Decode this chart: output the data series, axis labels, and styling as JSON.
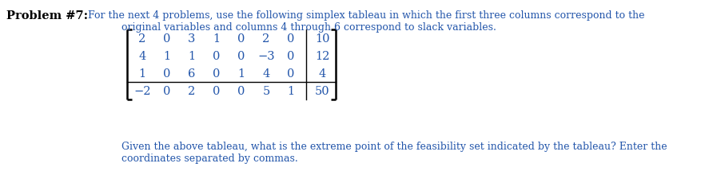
{
  "title_bold": "Problem #7:",
  "title_normal": "  For the next 4 problems, use the following simplex tableau in which the first three columns correspond to the",
  "title_line2": "original variables and columns 4 through 6 correspond to slack variables.",
  "matrix_rows": [
    [
      "2",
      "0",
      "3",
      "1",
      "0",
      "2",
      "0",
      "10"
    ],
    [
      "4",
      "1",
      "1",
      "0",
      "0",
      "−3",
      "0",
      "12"
    ],
    [
      "1",
      "0",
      "6",
      "0",
      "1",
      "4",
      "0",
      "4"
    ],
    [
      "−2",
      "0",
      "2",
      "0",
      "0",
      "5",
      "1",
      "50"
    ]
  ],
  "bottom_text_line1": "Given the above tableau, what is the extreme point of the feasibility set indicated by the tableau? Enter the",
  "bottom_text_line2": "coordinates separated by commas.",
  "text_color": "#2255aa",
  "bold_color": "#000000",
  "matrix_color": "#2255aa",
  "bg_color": "#ffffff",
  "font_size": 9.0,
  "bold_font_size": 10.5,
  "matrix_font_size": 10.5
}
